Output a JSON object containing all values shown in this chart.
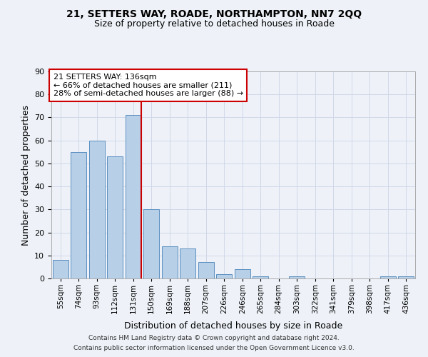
{
  "title1": "21, SETTERS WAY, ROADE, NORTHAMPTON, NN7 2QQ",
  "title2": "Size of property relative to detached houses in Roade",
  "xlabel": "Distribution of detached houses by size in Roade",
  "ylabel": "Number of detached properties",
  "categories": [
    "55sqm",
    "74sqm",
    "93sqm",
    "112sqm",
    "131sqm",
    "150sqm",
    "169sqm",
    "188sqm",
    "207sqm",
    "226sqm",
    "246sqm",
    "265sqm",
    "284sqm",
    "303sqm",
    "322sqm",
    "341sqm",
    "379sqm",
    "398sqm",
    "417sqm",
    "436sqm"
  ],
  "values": [
    8,
    55,
    60,
    53,
    71,
    30,
    14,
    13,
    7,
    2,
    4,
    1,
    0,
    1,
    0,
    0,
    0,
    0,
    1,
    1
  ],
  "bar_color": "#b8cfe8",
  "bar_edge_color": "#5a8fc0",
  "vline_x_index": 4.45,
  "vline_color": "#cc0000",
  "annotation_box_color": "#ffffff",
  "annotation_box_edge": "#cc0000",
  "annotation_text_line1": "21 SETTERS WAY: 136sqm",
  "annotation_text_line2": "← 66% of detached houses are smaller (211)",
  "annotation_text_line3": "28% of semi-detached houses are larger (88) →",
  "ylim": [
    0,
    90
  ],
  "yticks": [
    0,
    10,
    20,
    30,
    40,
    50,
    60,
    70,
    80,
    90
  ],
  "grid_color": "#d0d8e8",
  "background_color": "#eef2f8",
  "footer_line1": "Contains HM Land Registry data © Crown copyright and database right 2024.",
  "footer_line2": "Contains public sector information licensed under the Open Government Licence v3.0."
}
